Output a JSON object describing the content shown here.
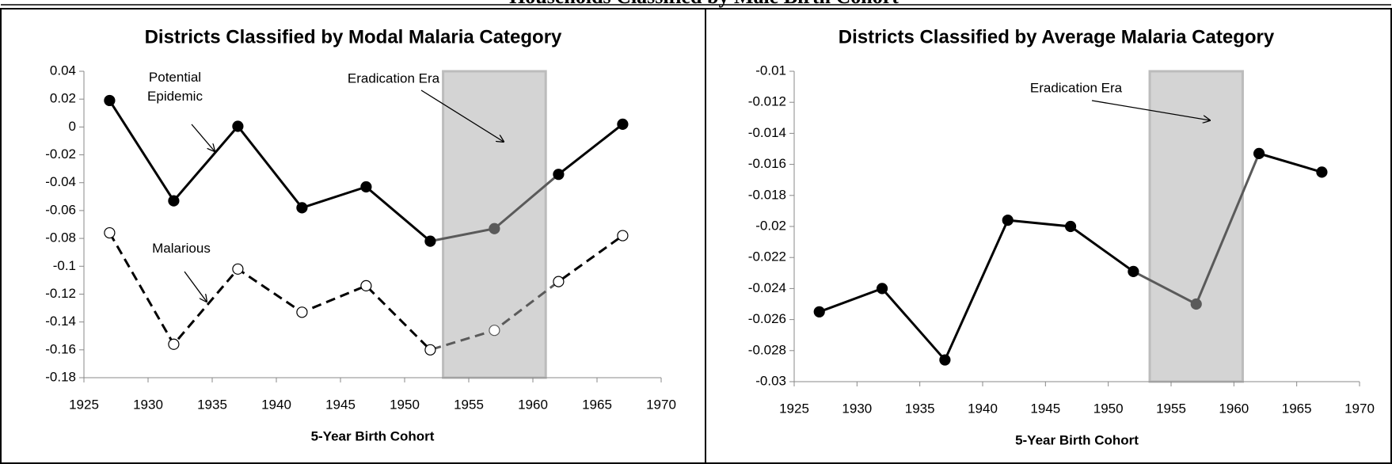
{
  "header": {
    "title": "Households Classified by Male Birth Cohort"
  },
  "chart_data": [
    {
      "type": "line",
      "title": "Districts Classified by Modal Malaria Category",
      "x_label": "5-Year Birth Cohort",
      "x": [
        1927,
        1932,
        1937,
        1942,
        1947,
        1952,
        1957,
        1962,
        1967
      ],
      "series": [
        {
          "name": "Potential Epidemic",
          "color": "#000000",
          "marker": "filled",
          "dashed": false,
          "values": [
            0.019,
            -0.053,
            0.0005,
            -0.058,
            -0.043,
            -0.082,
            -0.073,
            -0.034,
            0.002
          ]
        },
        {
          "name": "Malarious",
          "color": "#000000",
          "marker": "open",
          "dashed": true,
          "values": [
            -0.076,
            -0.156,
            -0.102,
            -0.133,
            -0.114,
            -0.16,
            -0.146,
            -0.111,
            -0.078
          ]
        }
      ],
      "shade": [
        1953,
        1961
      ],
      "shade_label": "Eradication Era",
      "xlim": [
        1925,
        1970
      ],
      "xticks": [
        1925,
        1930,
        1935,
        1940,
        1945,
        1950,
        1955,
        1960,
        1965,
        1970
      ],
      "ylim": [
        -0.18,
        0.04
      ],
      "yticks": [
        -0.18,
        -0.16,
        -0.14,
        -0.12,
        -0.1,
        -0.08,
        -0.06,
        -0.04,
        -0.02,
        0,
        0.02,
        0.04
      ]
    },
    {
      "type": "line",
      "title": "Districts Classified by Average Malaria Category",
      "x_label": "5-Year Birth Cohort",
      "x": [
        1927,
        1932,
        1937,
        1942,
        1947,
        1952,
        1957,
        1962,
        1967
      ],
      "series": [
        {
          "color": "#000000",
          "marker": "filled",
          "dashed": false,
          "values": [
            -0.0255,
            -0.024,
            -0.0286,
            -0.0196,
            -0.02,
            -0.0229,
            -0.025,
            -0.0153,
            -0.0165
          ]
        }
      ],
      "shade": [
        1953.3,
        1960.7
      ],
      "shade_label": "Eradication Era",
      "xlim": [
        1925,
        1970
      ],
      "xticks": [
        1925,
        1930,
        1935,
        1940,
        1945,
        1950,
        1955,
        1960,
        1965,
        1970
      ],
      "ylim": [
        -0.03,
        -0.01
      ],
      "yticks": [
        -0.03,
        -0.028,
        -0.026,
        -0.024,
        -0.022,
        -0.02,
        -0.018,
        -0.016,
        -0.014,
        -0.012,
        -0.01
      ]
    }
  ]
}
